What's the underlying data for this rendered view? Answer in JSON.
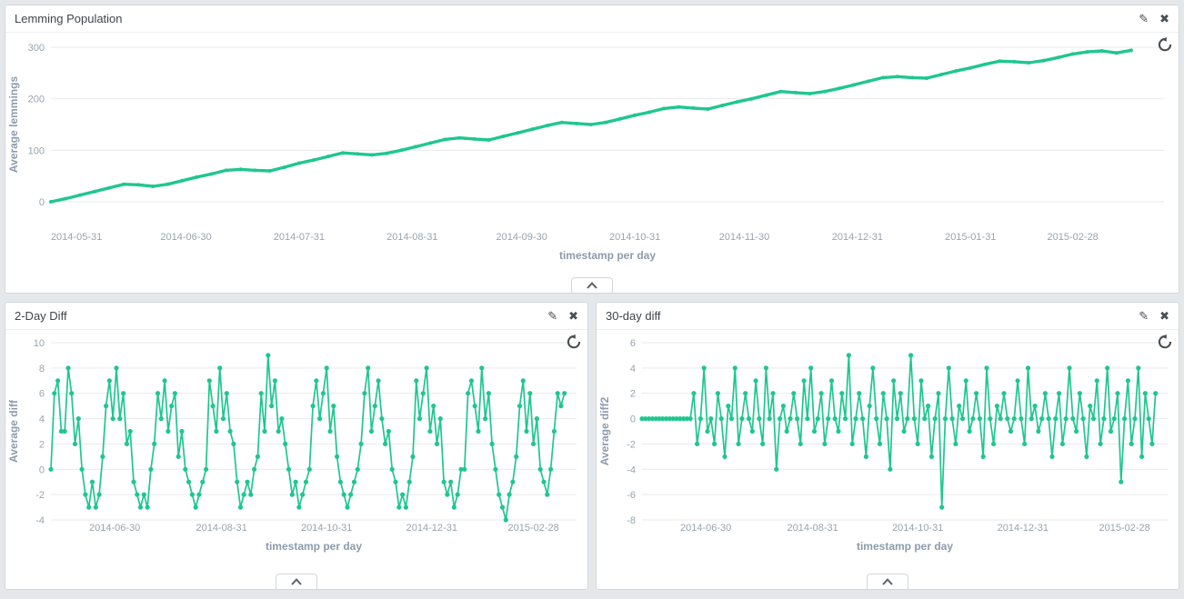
{
  "colors": {
    "line": "#1fc78d",
    "grid": "#e9e9e9",
    "tick_label": "#98a4ae",
    "axis_label": "#8c9bab",
    "icon": "#4a4f55"
  },
  "icons": {
    "edit": "✎",
    "close": "✖"
  },
  "panels": [
    {
      "title": "Lemming Population"
    },
    {
      "title": "2-Day Diff"
    },
    {
      "title": "30-day diff"
    }
  ],
  "chart_data": [
    {
      "type": "line",
      "title": "Lemming Population",
      "ylabel": "Average lemmings",
      "xlabel": "timestamp per day",
      "ylim": [
        0,
        300
      ],
      "yticks": [
        0,
        100,
        200,
        300
      ],
      "grid": "horizontal",
      "legend": "none",
      "xmax_days": 305,
      "x_step_days": 4,
      "xticks": [
        {
          "label": "2014-05-31",
          "day": 7
        },
        {
          "label": "2014-06-30",
          "day": 37
        },
        {
          "label": "2014-07-31",
          "day": 68
        },
        {
          "label": "2014-08-31",
          "day": 99
        },
        {
          "label": "2014-09-30",
          "day": 129
        },
        {
          "label": "2014-10-31",
          "day": 160
        },
        {
          "label": "2014-11-30",
          "day": 190
        },
        {
          "label": "2014-12-31",
          "day": 221
        },
        {
          "label": "2015-01-31",
          "day": 252
        },
        {
          "label": "2015-02-28",
          "day": 280
        }
      ],
      "values": [
        0,
        6,
        13,
        20,
        27,
        34,
        33,
        30,
        34,
        41,
        48,
        54,
        61,
        63,
        61,
        60,
        67,
        75,
        81,
        88,
        95,
        93,
        91,
        94,
        100,
        107,
        114,
        121,
        124,
        122,
        120,
        127,
        134,
        141,
        148,
        154,
        152,
        150,
        154,
        161,
        168,
        174,
        181,
        184,
        182,
        180,
        187,
        194,
        200,
        207,
        214,
        212,
        210,
        214,
        220,
        227,
        234,
        241,
        243,
        241,
        240,
        247,
        254,
        260,
        267,
        273,
        272,
        270,
        274,
        280,
        287,
        291,
        293,
        289,
        294
      ]
    },
    {
      "type": "line",
      "title": "2-Day Diff",
      "ylabel": "Average diff",
      "xlabel": "timestamp per day",
      "ylim": [
        -4,
        10
      ],
      "yticks": [
        -4,
        -2,
        0,
        2,
        4,
        6,
        8,
        10
      ],
      "grid": "horizontal",
      "legend": "none",
      "xmax_days": 305,
      "x_step_days": 2,
      "xticks": [
        {
          "label": "2014-06-30",
          "day": 37
        },
        {
          "label": "2014-08-31",
          "day": 99
        },
        {
          "label": "2014-10-31",
          "day": 160
        },
        {
          "label": "2014-12-31",
          "day": 221
        },
        {
          "label": "2015-02-28",
          "day": 280
        }
      ],
      "values": [
        0,
        6,
        7,
        3,
        3,
        8,
        6,
        2,
        4,
        0,
        -2,
        -3,
        -1,
        -3,
        -2,
        1,
        5,
        7,
        4,
        8,
        4,
        6,
        2,
        3,
        -1,
        -2,
        -3,
        -2,
        -3,
        0,
        2,
        6,
        4,
        7,
        3,
        5,
        6,
        1,
        3,
        0,
        -1,
        -2,
        -3,
        -2,
        -1,
        0,
        7,
        5,
        3,
        8,
        4,
        6,
        3,
        2,
        -1,
        -3,
        -2,
        -1,
        -2,
        0,
        1,
        6,
        3,
        9,
        5,
        7,
        3,
        4,
        2,
        0,
        -2,
        -1,
        -3,
        -2,
        -1,
        0,
        5,
        7,
        4,
        6,
        8,
        3,
        5,
        1,
        -1,
        -2,
        -3,
        -2,
        -1,
        0,
        2,
        6,
        8,
        3,
        5,
        7,
        4,
        2,
        3,
        0,
        -1,
        -3,
        -2,
        -3,
        -1,
        1,
        7,
        4,
        6,
        8,
        3,
        5,
        2,
        4,
        -1,
        -2,
        -1,
        -3,
        -2,
        0,
        0,
        6,
        7,
        5,
        3,
        8,
        4,
        6,
        2,
        0,
        -2,
        -3,
        -4,
        -2,
        -1,
        1,
        5,
        7,
        3,
        6,
        2,
        4,
        0,
        -1,
        -2,
        0,
        3,
        6,
        5,
        6
      ]
    },
    {
      "type": "line",
      "title": "30-day diff",
      "ylabel": "Average diff2",
      "xlabel": "timestamp per day",
      "ylim": [
        -8,
        6
      ],
      "yticks": [
        -8,
        -6,
        -4,
        -2,
        0,
        2,
        4,
        6
      ],
      "grid": "horizontal",
      "legend": "none",
      "xmax_days": 305,
      "x_step_days": 2,
      "xticks": [
        {
          "label": "2014-06-30",
          "day": 37
        },
        {
          "label": "2014-08-31",
          "day": 99
        },
        {
          "label": "2014-10-31",
          "day": 160
        },
        {
          "label": "2014-12-31",
          "day": 221
        },
        {
          "label": "2015-02-28",
          "day": 280
        }
      ],
      "values": [
        0,
        0,
        0,
        0,
        0,
        0,
        0,
        0,
        0,
        0,
        0,
        0,
        0,
        0,
        0,
        2,
        -2,
        0,
        4,
        -1,
        0,
        -2,
        2,
        0,
        -3,
        1,
        0,
        4,
        -2,
        0,
        2,
        0,
        -1,
        3,
        0,
        -2,
        4,
        0,
        2,
        -4,
        0,
        1,
        -1,
        0,
        2,
        0,
        -2,
        3,
        0,
        4,
        -1,
        0,
        2,
        -2,
        0,
        3,
        0,
        -1,
        2,
        0,
        5,
        -2,
        0,
        2,
        0,
        -3,
        1,
        4,
        0,
        -2,
        2,
        0,
        -4,
        3,
        0,
        2,
        -1,
        0,
        5,
        0,
        -2,
        3,
        0,
        1,
        -3,
        0,
        2,
        -7,
        0,
        4,
        0,
        -2,
        1,
        0,
        3,
        -1,
        0,
        2,
        0,
        -3,
        4,
        0,
        -2,
        1,
        0,
        2,
        0,
        -1,
        0,
        3,
        0,
        -2,
        4,
        0,
        1,
        -1,
        0,
        2,
        0,
        -3,
        0,
        2,
        -2,
        0,
        4,
        0,
        -1,
        2,
        0,
        -3,
        1,
        0,
        3,
        -2,
        0,
        4,
        -1,
        0,
        2,
        -5,
        0,
        3,
        -2,
        0,
        4,
        -3,
        2,
        0,
        -2,
        2
      ]
    }
  ]
}
